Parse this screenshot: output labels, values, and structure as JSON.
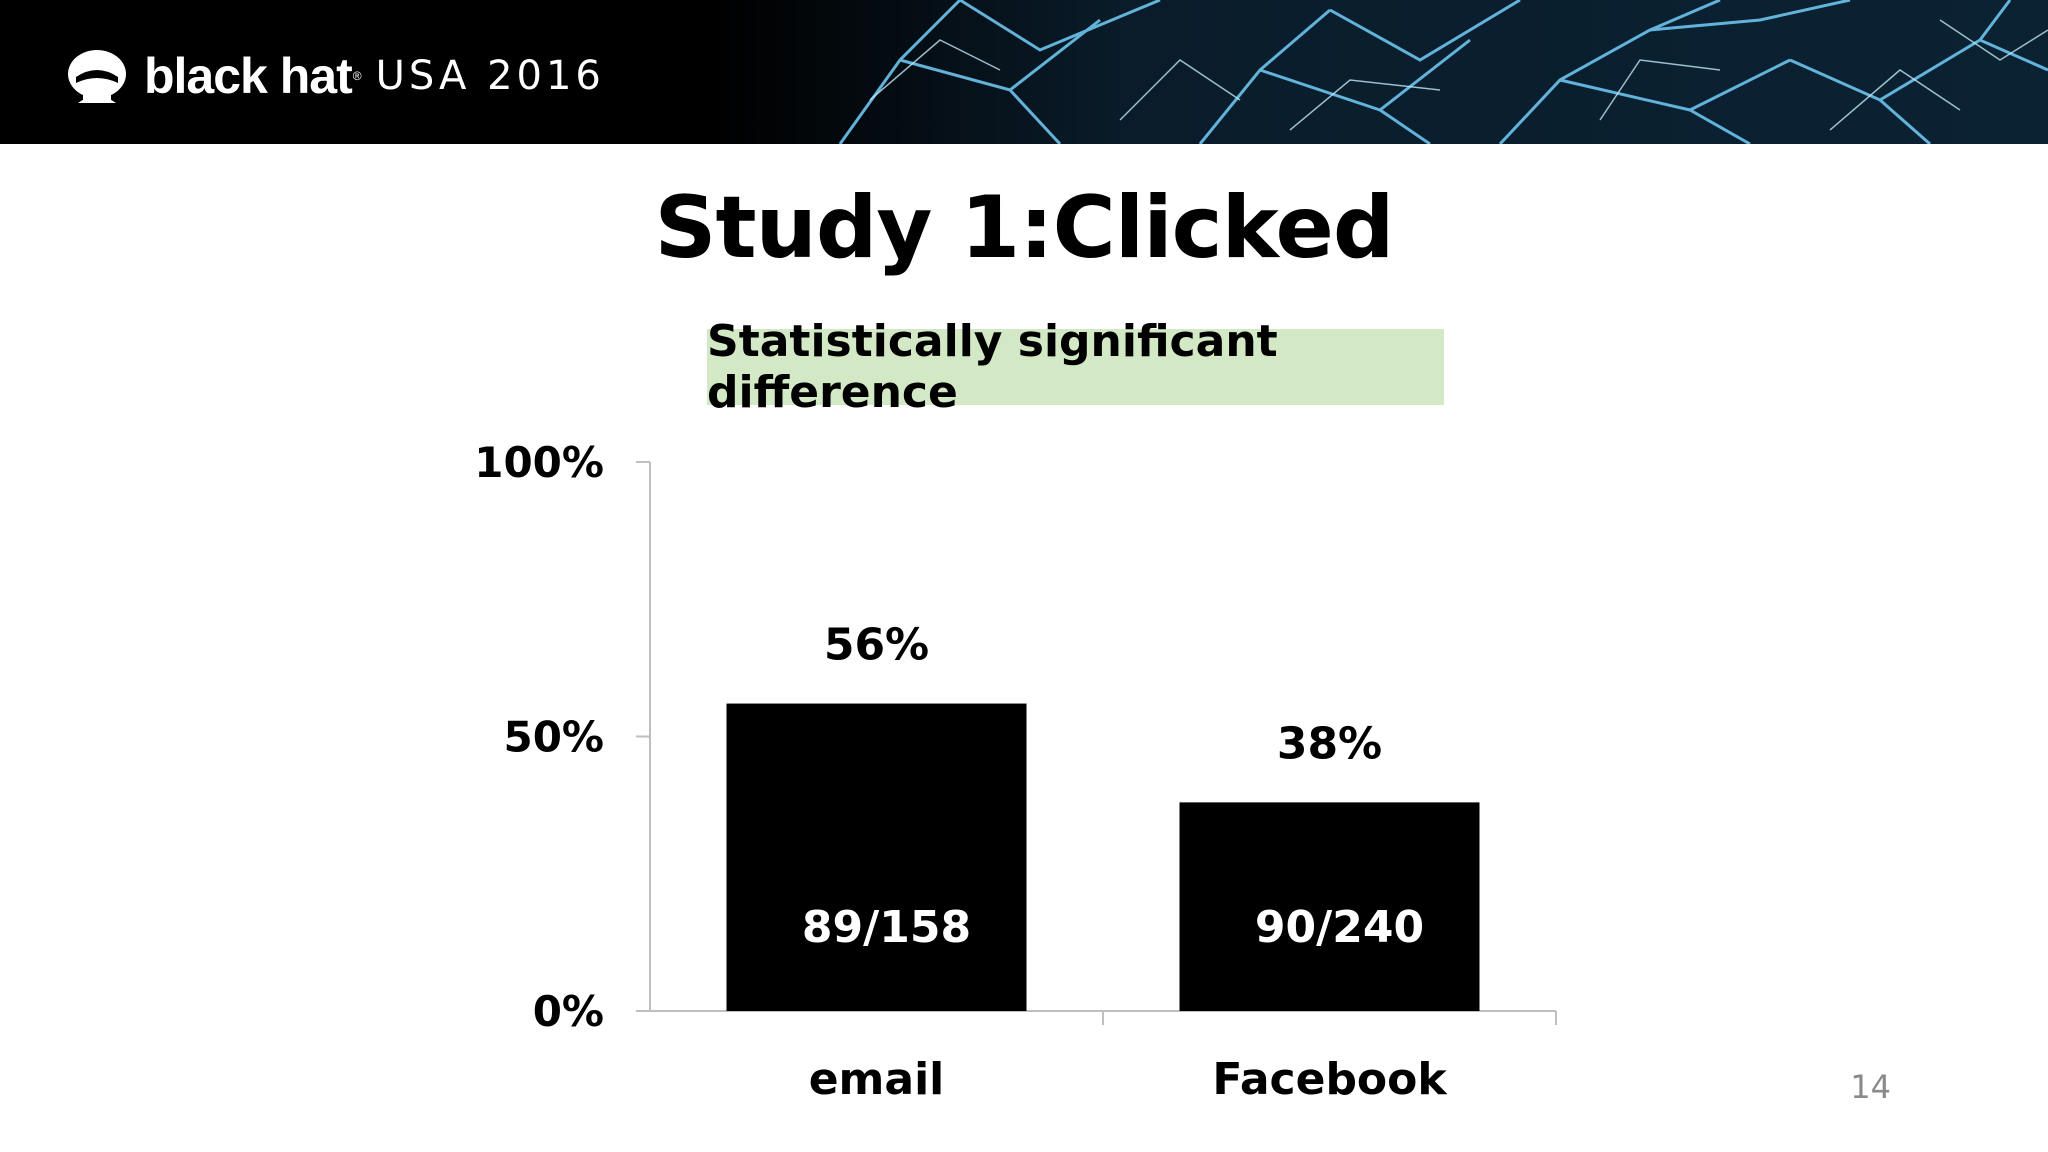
{
  "header": {
    "brand": "black hat",
    "registered": "®",
    "event": "USA 2016",
    "logo_icon": "hat-spy-icon"
  },
  "slide": {
    "title": "Study 1:Clicked",
    "callout": "Statistically significant difference",
    "page_number": "14"
  },
  "colors": {
    "bar": "#000000",
    "callout_bg": "#d3e9c6",
    "header_bg": "#000000",
    "glass": "#4fb3e6"
  },
  "chart_data": {
    "type": "bar",
    "categories": [
      "email",
      "Facebook"
    ],
    "values": [
      56,
      38
    ],
    "value_labels": [
      "56%",
      "38%"
    ],
    "inner_labels": [
      "89/158",
      "90/240"
    ],
    "yticks": [
      0,
      50,
      100
    ],
    "ytick_labels": [
      "0%",
      "50%",
      "100%"
    ],
    "ylim": [
      0,
      100
    ],
    "title": "",
    "xlabel": "",
    "ylabel": "",
    "grid": false,
    "legend": "none"
  }
}
